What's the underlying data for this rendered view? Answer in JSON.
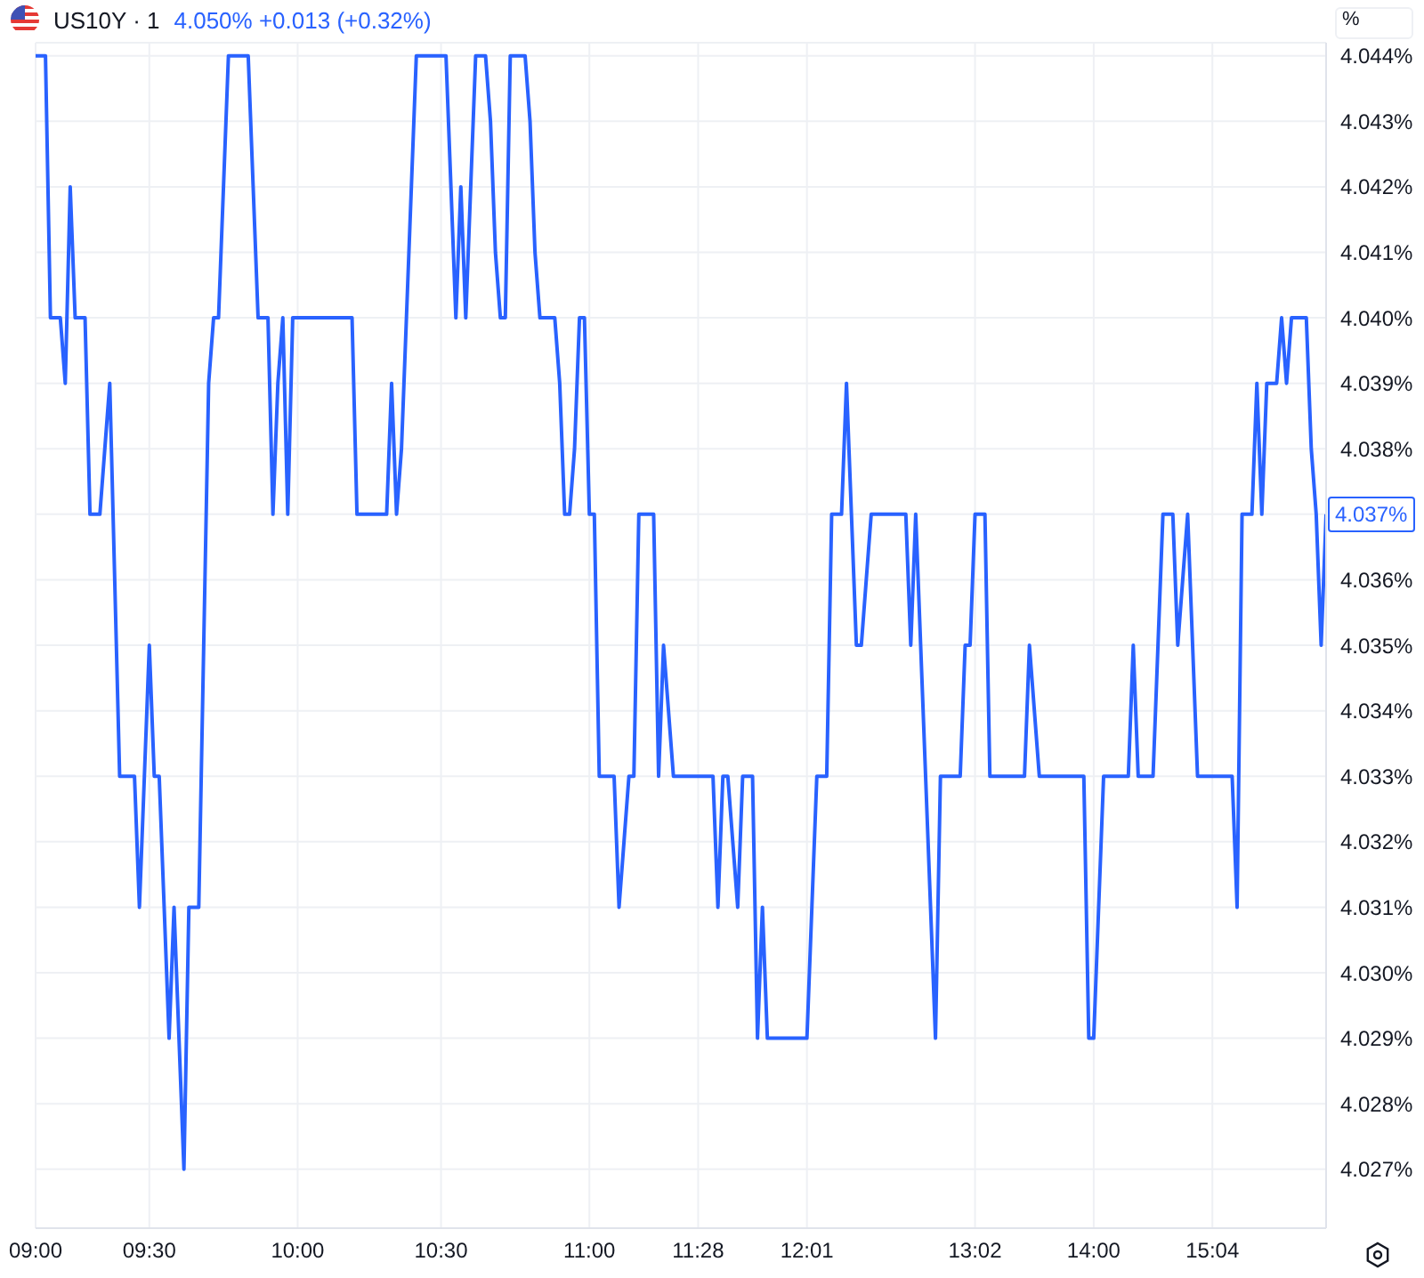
{
  "chart_data": {
    "type": "line",
    "title": "US10Y · 1",
    "subtitle": "4.050% +0.013 (+0.32%)",
    "ylabel": "%",
    "categories": [
      "09:00",
      null,
      null,
      null,
      null,
      null,
      null,
      null,
      null,
      null,
      null,
      null,
      null,
      null,
      null,
      null,
      null,
      null,
      null,
      null,
      null,
      null,
      null,
      "09:30",
      null,
      null,
      null,
      null,
      null,
      null,
      null,
      null,
      null,
      null,
      null,
      null,
      null,
      null,
      null,
      null,
      null,
      null,
      null,
      null,
      null,
      null,
      null,
      null,
      null,
      null,
      null,
      null,
      null,
      "10:00",
      null,
      null,
      null,
      null,
      null,
      null,
      null,
      null,
      null,
      null,
      null,
      null,
      null,
      null,
      null,
      null,
      null,
      null,
      null,
      null,
      null,
      null,
      null,
      null,
      null,
      null,
      null,
      null,
      "10:30",
      null,
      null,
      null,
      null,
      null,
      null,
      null,
      null,
      null,
      null,
      null,
      null,
      null,
      null,
      null,
      null,
      null,
      null,
      null,
      null,
      null,
      null,
      null,
      null,
      null,
      null,
      null,
      null,
      null,
      "11:00",
      null,
      null,
      null,
      null,
      null,
      null,
      null,
      null,
      null,
      null,
      null,
      null,
      null,
      null,
      null,
      null,
      null,
      null,
      null,
      null,
      null,
      "11:28",
      null,
      null,
      null,
      null,
      null,
      null,
      null,
      null,
      null,
      null,
      null,
      null,
      null,
      null,
      null,
      null,
      null,
      null,
      null,
      null,
      null,
      "12:01",
      null,
      null,
      null,
      null,
      null,
      null,
      null,
      null,
      null,
      null,
      null,
      null,
      null,
      null,
      null,
      null,
      null,
      null,
      null,
      null,
      null,
      null,
      null,
      null,
      null,
      null,
      null,
      null,
      null,
      null,
      null,
      null,
      null,
      "13:02",
      null,
      null,
      null,
      null,
      null,
      null,
      null,
      null,
      null,
      null,
      null,
      null,
      null,
      null,
      null,
      null,
      null,
      null,
      null,
      null,
      null,
      null,
      null,
      "14:00",
      null,
      null,
      null,
      null,
      null,
      null,
      null,
      null,
      null,
      null,
      null,
      null,
      null,
      null,
      null,
      null,
      null,
      null,
      null,
      null,
      null,
      null,
      null,
      "15:04",
      null,
      null,
      null,
      null,
      null,
      null,
      null,
      null,
      null,
      null,
      null,
      null,
      null,
      null,
      null,
      null,
      null,
      null,
      null,
      null,
      null,
      null,
      null
    ],
    "series": [
      {
        "color": "#2962ff",
        "values": [
          4.044,
          4.044,
          4.044,
          4.04,
          4.04,
          4.04,
          4.039,
          4.042,
          4.04,
          4.04,
          4.04,
          4.037,
          4.037,
          4.037,
          4.038,
          4.039,
          4.036,
          4.033,
          4.033,
          4.033,
          4.033,
          4.031,
          4.033,
          4.035,
          4.033,
          4.033,
          4.031,
          4.029,
          4.031,
          4.029,
          4.027,
          4.031,
          4.031,
          4.031,
          4.035,
          4.039,
          4.04,
          4.04,
          4.042,
          4.044,
          4.044,
          4.044,
          4.044,
          4.044,
          4.042,
          4.04,
          4.04,
          4.04,
          4.037,
          4.039,
          4.04,
          4.037,
          4.04,
          4.04,
          4.04,
          4.04,
          4.04,
          4.04,
          4.04,
          4.04,
          4.04,
          4.04,
          4.04,
          4.04,
          4.04,
          4.037,
          4.037,
          4.037,
          4.037,
          4.037,
          4.037,
          4.037,
          4.039,
          4.037,
          4.038,
          4.04,
          4.042,
          4.044,
          4.044,
          4.044,
          4.044,
          4.044,
          4.044,
          4.044,
          4.042,
          4.04,
          4.042,
          4.04,
          4.042,
          4.044,
          4.044,
          4.044,
          4.043,
          4.041,
          4.04,
          4.04,
          4.044,
          4.044,
          4.044,
          4.044,
          4.043,
          4.041,
          4.04,
          4.04,
          4.04,
          4.04,
          4.039,
          4.037,
          4.037,
          4.038,
          4.04,
          4.04,
          4.037,
          4.037,
          4.033,
          4.033,
          4.033,
          4.033,
          4.031,
          4.032,
          4.033,
          4.033,
          4.037,
          4.037,
          4.037,
          4.037,
          4.033,
          4.035,
          4.034,
          4.033,
          4.033,
          4.033,
          4.033,
          4.033,
          4.033,
          4.033,
          4.033,
          4.033,
          4.031,
          4.033,
          4.033,
          4.032,
          4.031,
          4.033,
          4.033,
          4.033,
          4.029,
          4.031,
          4.029,
          4.029,
          4.029,
          4.029,
          4.029,
          4.029,
          4.029,
          4.029,
          4.029,
          4.031,
          4.033,
          4.033,
          4.033,
          4.037,
          4.037,
          4.037,
          4.039,
          4.037,
          4.035,
          4.035,
          4.036,
          4.037,
          4.037,
          4.037,
          4.037,
          4.037,
          4.037,
          4.037,
          4.037,
          4.035,
          4.037,
          4.035,
          4.033,
          4.031,
          4.029,
          4.033,
          4.033,
          4.033,
          4.033,
          4.033,
          4.035,
          4.035,
          4.037,
          4.037,
          4.037,
          4.033,
          4.033,
          4.033,
          4.033,
          4.033,
          4.033,
          4.033,
          4.033,
          4.035,
          4.034,
          4.033,
          4.033,
          4.033,
          4.033,
          4.033,
          4.033,
          4.033,
          4.033,
          4.033,
          4.033,
          4.029,
          4.029,
          4.031,
          4.033,
          4.033,
          4.033,
          4.033,
          4.033,
          4.033,
          4.035,
          4.033,
          4.033,
          4.033,
          4.033,
          4.035,
          4.037,
          4.037,
          4.037,
          4.035,
          4.036,
          4.037,
          4.035,
          4.033,
          4.033,
          4.033,
          4.033,
          4.033,
          4.033,
          4.033,
          4.033,
          4.031,
          4.037,
          4.037,
          4.037,
          4.039,
          4.037,
          4.039,
          4.039,
          4.039,
          4.04,
          4.039,
          4.04,
          4.04,
          4.04,
          4.04,
          4.038,
          4.037,
          4.035,
          4.037
        ]
      }
    ],
    "ylim": [
      4.0261,
      4.0442
    ],
    "yticks": [
      {
        "value": 4.027,
        "label": "4.027%"
      },
      {
        "value": 4.028,
        "label": "4.028%"
      },
      {
        "value": 4.029,
        "label": "4.029%"
      },
      {
        "value": 4.03,
        "label": "4.030%"
      },
      {
        "value": 4.031,
        "label": "4.031%"
      },
      {
        "value": 4.032,
        "label": "4.032%"
      },
      {
        "value": 4.033,
        "label": "4.033%"
      },
      {
        "value": 4.034,
        "label": "4.034%"
      },
      {
        "value": 4.035,
        "label": "4.035%"
      },
      {
        "value": 4.036,
        "label": "4.036%"
      },
      {
        "value": 4.037,
        "label": null
      },
      {
        "value": 4.038,
        "label": "4.038%"
      },
      {
        "value": 4.039,
        "label": "4.039%"
      },
      {
        "value": 4.04,
        "label": "4.040%"
      },
      {
        "value": 4.041,
        "label": "4.041%"
      },
      {
        "value": 4.042,
        "label": "4.042%"
      },
      {
        "value": 4.043,
        "label": "4.043%"
      },
      {
        "value": 4.044,
        "label": "4.044%"
      }
    ],
    "annotations": [
      "4.037%"
    ],
    "grid": true,
    "legend": false,
    "line_style": "solid",
    "marker": "none"
  }
}
